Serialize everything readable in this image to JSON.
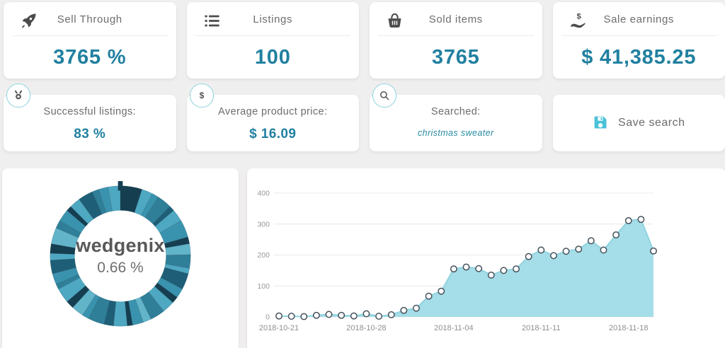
{
  "stats": [
    {
      "title": "Sell Through",
      "value": "3765 %",
      "icon": "rocket-icon"
    },
    {
      "title": "Listings",
      "value": "100",
      "icon": "list-icon"
    },
    {
      "title": "Sold items",
      "value": "3765",
      "icon": "basket-icon"
    },
    {
      "title": "Sale earnings",
      "value": "$ 41,385.25",
      "icon": "hand-dollar-icon"
    }
  ],
  "substats": [
    {
      "title": "Successful listings:",
      "value": "83 %",
      "icon": "medal-icon"
    },
    {
      "title": "Average product price:",
      "value": "$ 16.09",
      "icon": "dollar-icon"
    },
    {
      "title": "Searched:",
      "value": "christmas sweater",
      "icon": "search-icon"
    }
  ],
  "save_search": {
    "label": "Save search",
    "icon": "save-icon"
  },
  "colors": {
    "accent": "#2180a0",
    "title_gray": "#6d6d6d",
    "badge_border": "#8ed6e1",
    "save_icon": "#49c2d8",
    "area_fill": "#a5dde8",
    "area_line": "#8fd3e0",
    "marker_stroke": "#46525b",
    "grid": "#e8e8e8",
    "axis_text": "#979797",
    "donut_palette": [
      "#4ea8c2",
      "#2f7f99",
      "#153f51",
      "#3a93ae",
      "#1e5f77",
      "#62b4c9"
    ]
  },
  "chart_data": [
    {
      "type": "pie",
      "variant": "donut",
      "center_label": "wedgenix",
      "center_value": "0.66 %",
      "segment_sizes": [
        16,
        8,
        5,
        11,
        4,
        9,
        13,
        5,
        8,
        10,
        4,
        12,
        7,
        5,
        9,
        11,
        6,
        8,
        4,
        10,
        7,
        12,
        5,
        9,
        6,
        11,
        4,
        8,
        10,
        5,
        7,
        12,
        6,
        9,
        4,
        8,
        11,
        5,
        7,
        9
      ],
      "segment_colors": [
        2,
        0,
        3,
        1,
        4,
        0,
        3,
        2,
        5,
        1,
        0,
        4,
        3,
        2,
        0,
        1,
        5,
        3,
        2,
        0,
        4,
        1,
        3,
        5,
        2,
        0,
        1,
        3,
        4,
        0,
        2,
        5,
        1,
        3,
        2,
        0,
        4,
        1,
        3,
        0
      ]
    },
    {
      "type": "area",
      "x": [
        "2018-10-21",
        "2018-10-22",
        "2018-10-23",
        "2018-10-24",
        "2018-10-25",
        "2018-10-26",
        "2018-10-27",
        "2018-10-28",
        "2018-10-29",
        "2018-10-30",
        "2018-10-31",
        "2018-11-01",
        "2018-11-02",
        "2018-11-03",
        "2018-11-04",
        "2018-11-05",
        "2018-11-06",
        "2018-11-07",
        "2018-11-08",
        "2018-11-09",
        "2018-11-10",
        "2018-11-11",
        "2018-11-12",
        "2018-11-13",
        "2018-11-14",
        "2018-11-15",
        "2018-11-16",
        "2018-11-17",
        "2018-11-18",
        "2018-11-19",
        "2018-11-20"
      ],
      "values": [
        3,
        2,
        1,
        5,
        8,
        5,
        3,
        10,
        2,
        7,
        21,
        28,
        67,
        83,
        155,
        161,
        156,
        135,
        150,
        155,
        195,
        216,
        198,
        212,
        219,
        246,
        216,
        265,
        311,
        315,
        213
      ],
      "yticks": [
        0,
        100,
        200,
        300,
        400
      ],
      "xticks": [
        "2018-10-21",
        "2018-10-28",
        "2018-11-04",
        "2018-11-11",
        "2018-11-18"
      ],
      "ylim": [
        0,
        400
      ],
      "grid": true,
      "legend": false
    }
  ]
}
